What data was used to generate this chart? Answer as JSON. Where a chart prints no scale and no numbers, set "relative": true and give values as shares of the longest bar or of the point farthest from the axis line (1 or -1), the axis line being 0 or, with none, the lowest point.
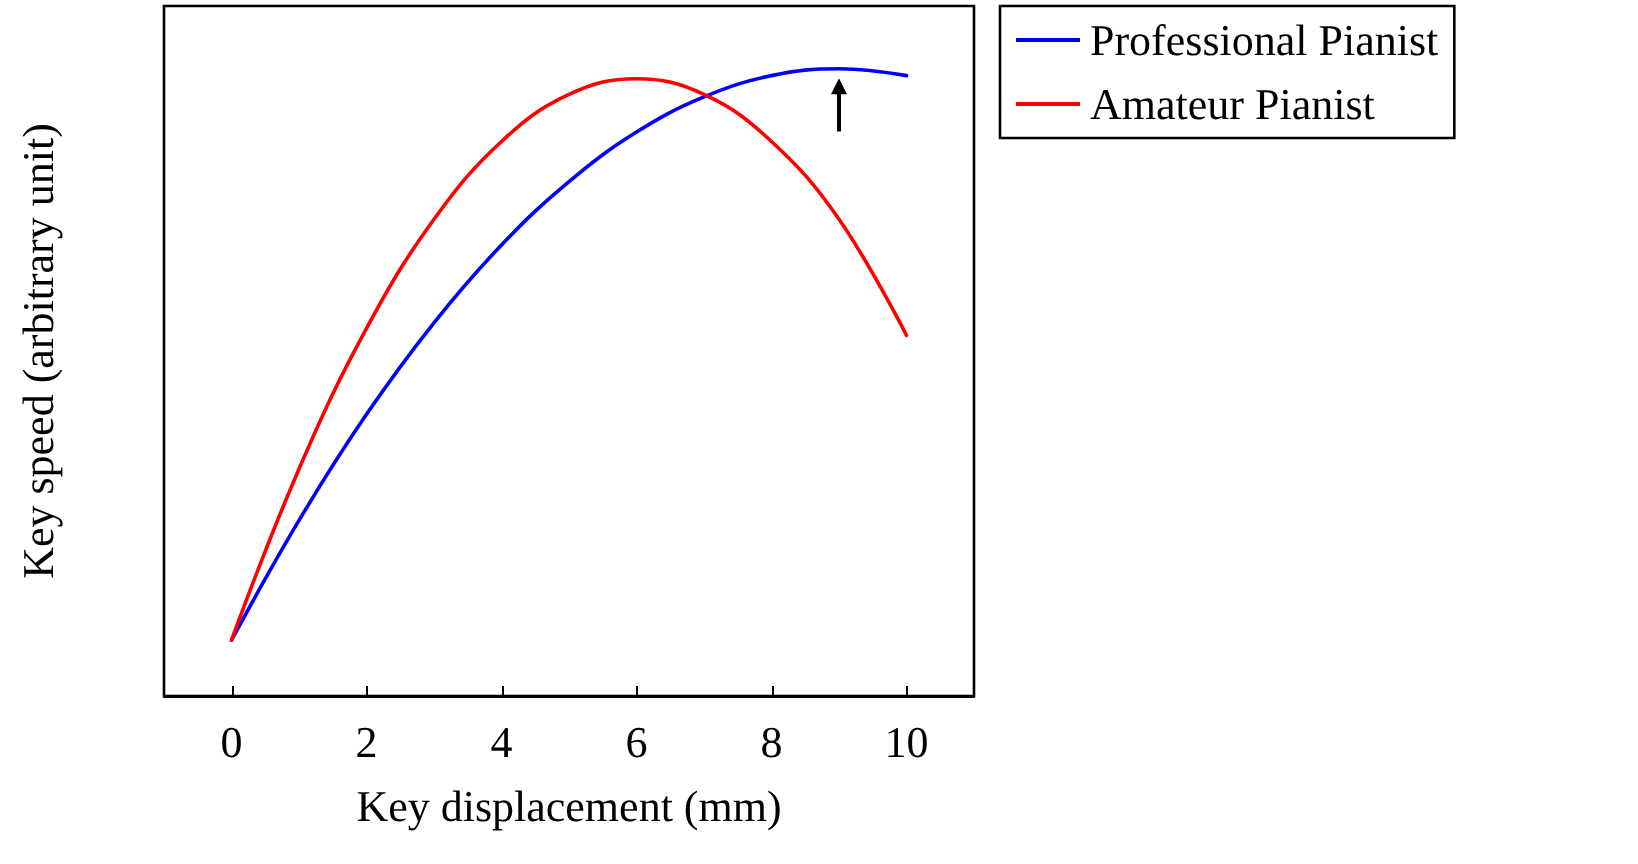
{
  "chart_data": {
    "type": "line",
    "xlabel": "Key displacement (mm)",
    "ylabel": "Key speed (arbitrary unit)",
    "relative": true,
    "xlim": [
      -1,
      11
    ],
    "xticks": [
      0,
      2,
      4,
      6,
      8,
      10
    ],
    "tick_labels": "x",
    "legend": "top right",
    "grid": false,
    "marker": "none",
    "series": [
      {
        "name": "Professional Pianist",
        "color": "#0000ff",
        "x": [
          0,
          1,
          2,
          3,
          4,
          5,
          6,
          7,
          8,
          9,
          10
        ],
        "values": [
          0.089,
          0.28,
          0.449,
          0.595,
          0.719,
          0.82,
          0.899,
          0.955,
          0.989,
          1.0,
          0.989
        ]
      },
      {
        "name": "Amateur Pianist",
        "color": "#ff0000",
        "x": [
          0,
          1,
          2,
          3,
          4,
          5,
          6,
          7,
          8,
          9,
          10
        ],
        "values": [
          0.089,
          0.362,
          0.586,
          0.76,
          0.884,
          0.959,
          0.984,
          0.959,
          0.884,
          0.76,
          0.575
        ]
      }
    ]
  }
}
